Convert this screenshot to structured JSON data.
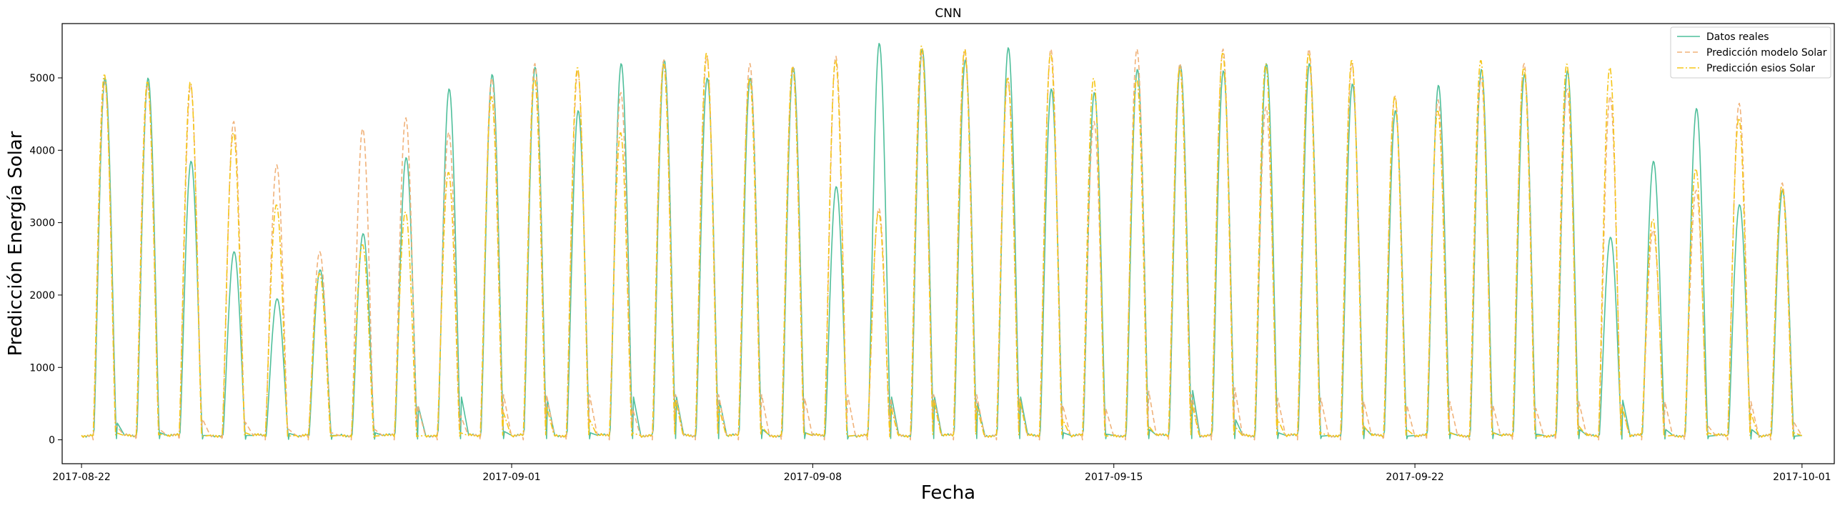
{
  "chart_data": {
    "type": "line",
    "title": "CNN",
    "xlabel": "Fecha",
    "ylabel": "Predicción Energía Solar",
    "x_start": "2017-08-22",
    "x_range_days": [
      -0.45,
      40.75
    ],
    "ylim": [
      -330,
      5750
    ],
    "xticks": [
      {
        "label": "2017-08-22",
        "day": 0
      },
      {
        "label": "2017-09-01",
        "day": 10
      },
      {
        "label": "2017-09-08",
        "day": 17
      },
      {
        "label": "2017-09-15",
        "day": 24
      },
      {
        "label": "2017-09-22",
        "day": 31
      },
      {
        "label": "2017-10-01",
        "day": 40
      }
    ],
    "yticks": [
      0,
      1000,
      2000,
      3000,
      4000,
      5000
    ],
    "grid": false,
    "legend_position": "top-right",
    "series": [
      {
        "name": "Datos reales",
        "color": "#4fbf9b",
        "style": "solid",
        "daily_peaks": [
          5000,
          5000,
          3850,
          2600,
          1950,
          2350,
          2850,
          3900,
          4850,
          5050,
          5150,
          4550,
          5200,
          5250,
          5000,
          5000,
          5150,
          3500,
          5480,
          5400,
          5250,
          5420,
          4850,
          4800,
          5120,
          5180,
          5100,
          5200,
          5200,
          4920,
          4550,
          4900,
          5120,
          5050,
          5100,
          2800,
          3850,
          4580,
          3250,
          3450
        ],
        "daily_night": [
          250,
          100,
          60,
          60,
          90,
          60,
          100,
          500,
          650,
          120,
          600,
          100,
          650,
          650,
          600,
          150,
          100,
          50,
          650,
          650,
          550,
          650,
          100,
          80,
          150,
          750,
          300,
          100,
          50,
          180,
          50,
          100,
          100,
          80,
          150,
          600,
          150,
          50,
          150,
          50
        ]
      },
      {
        "name": "Predicción modelo Solar",
        "color": "#f0b27a",
        "style": "dashed",
        "daily_peaks": [
          4950,
          4900,
          4900,
          4400,
          3800,
          2600,
          4300,
          4450,
          4250,
          5000,
          5200,
          5100,
          4800,
          5250,
          5300,
          5200,
          5150,
          5300,
          3200,
          5350,
          5400,
          5000,
          5400,
          4400,
          5400,
          5200,
          5400,
          4600,
          5400,
          5200,
          4750,
          4700,
          5000,
          5200,
          4850,
          4750,
          2900,
          3450,
          4650,
          3550
        ],
        "daily_night": [
          200,
          150,
          300,
          250,
          150,
          100,
          150,
          500,
          350,
          650,
          650,
          650,
          450,
          650,
          650,
          650,
          600,
          650,
          600,
          650,
          650,
          600,
          500,
          450,
          700,
          650,
          750,
          600,
          600,
          550,
          500,
          550,
          500,
          450,
          550,
          500,
          550,
          200,
          550,
          250
        ]
      },
      {
        "name": "Predicción esios Solar",
        "color": "#f5c518",
        "style": "dashdot",
        "daily_peaks": [
          5050,
          4950,
          4950,
          4250,
          3250,
          2300,
          2700,
          3150,
          3700,
          4750,
          5000,
          5150,
          4250,
          5200,
          5350,
          5000,
          5150,
          5250,
          3150,
          5450,
          5400,
          5000,
          5350,
          5000,
          5000,
          5150,
          5350,
          5200,
          5350,
          5250,
          4750,
          4550,
          5250,
          5150,
          5200,
          5150,
          3050,
          3750,
          4450,
          3500
        ],
        "daily_night": [
          100,
          80,
          50,
          100,
          50,
          50,
          50,
          50,
          100,
          400,
          500,
          300,
          100,
          600,
          500,
          200,
          100,
          50,
          500,
          600,
          500,
          600,
          300,
          50,
          200,
          550,
          200,
          300,
          100,
          200,
          150,
          100,
          100,
          50,
          200,
          500,
          50,
          100,
          400,
          100
        ]
      }
    ]
  }
}
